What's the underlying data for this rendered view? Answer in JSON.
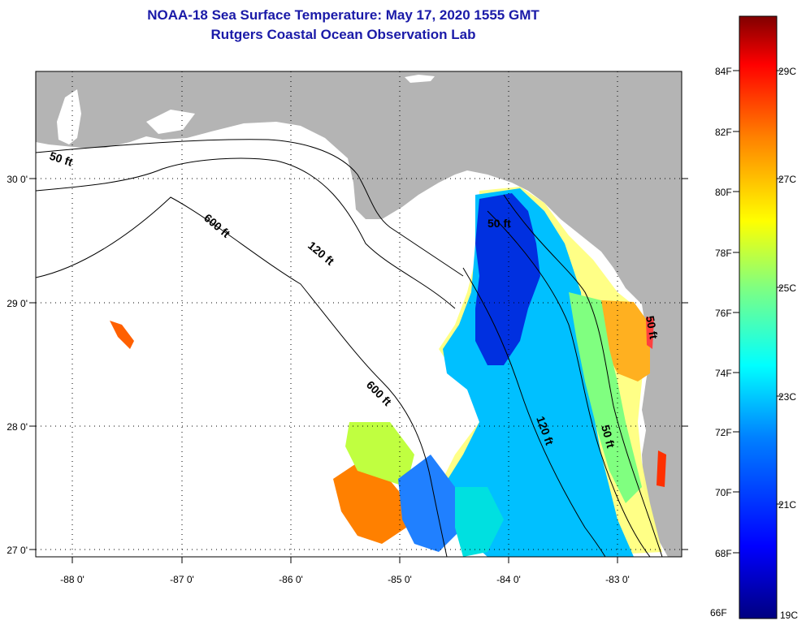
{
  "title": "NOAA-18 Sea Surface Temperature:  May 17, 2020 1555 GMT",
  "subtitle": "Rutgers Coastal Ocean Observation Lab",
  "map": {
    "lon_range": [
      -88.35,
      -82.45
    ],
    "lat_range": [
      26.98,
      30.88
    ],
    "lon_ticks": [
      {
        "value": -88,
        "label": "-88 0'"
      },
      {
        "value": -87,
        "label": "-87 0'"
      },
      {
        "value": -86,
        "label": "-86 0'"
      },
      {
        "value": -85,
        "label": "-85 0'"
      },
      {
        "value": -84,
        "label": "-84 0'"
      },
      {
        "value": -83,
        "label": "-83 0'"
      }
    ],
    "lat_ticks": [
      {
        "value": 27,
        "label": "27 0'"
      },
      {
        "value": 28,
        "label": "28 0'"
      },
      {
        "value": 29,
        "label": "29 0'"
      },
      {
        "value": 30,
        "label": "30 0'"
      }
    ],
    "depth_labels": [
      "50 ft",
      "600 ft",
      "120 ft",
      "50 ft",
      "600 ft",
      "120 ft",
      "50 ft",
      "50 ft"
    ],
    "land_color": "#b4b4b4",
    "grid": true
  },
  "colorbar": {
    "fahrenheit_labels": [
      "84F",
      "82F",
      "80F",
      "78F",
      "76F",
      "74F",
      "72F",
      "70F",
      "68F",
      "66F"
    ],
    "celsius_labels": [
      "29C",
      "27C",
      "25C",
      "23C",
      "21C",
      "19C"
    ],
    "colors": [
      "#000080",
      "#0000ff",
      "#0080ff",
      "#00ffff",
      "#80ff80",
      "#ffff00",
      "#ff8000",
      "#ff0000",
      "#800000"
    ]
  }
}
